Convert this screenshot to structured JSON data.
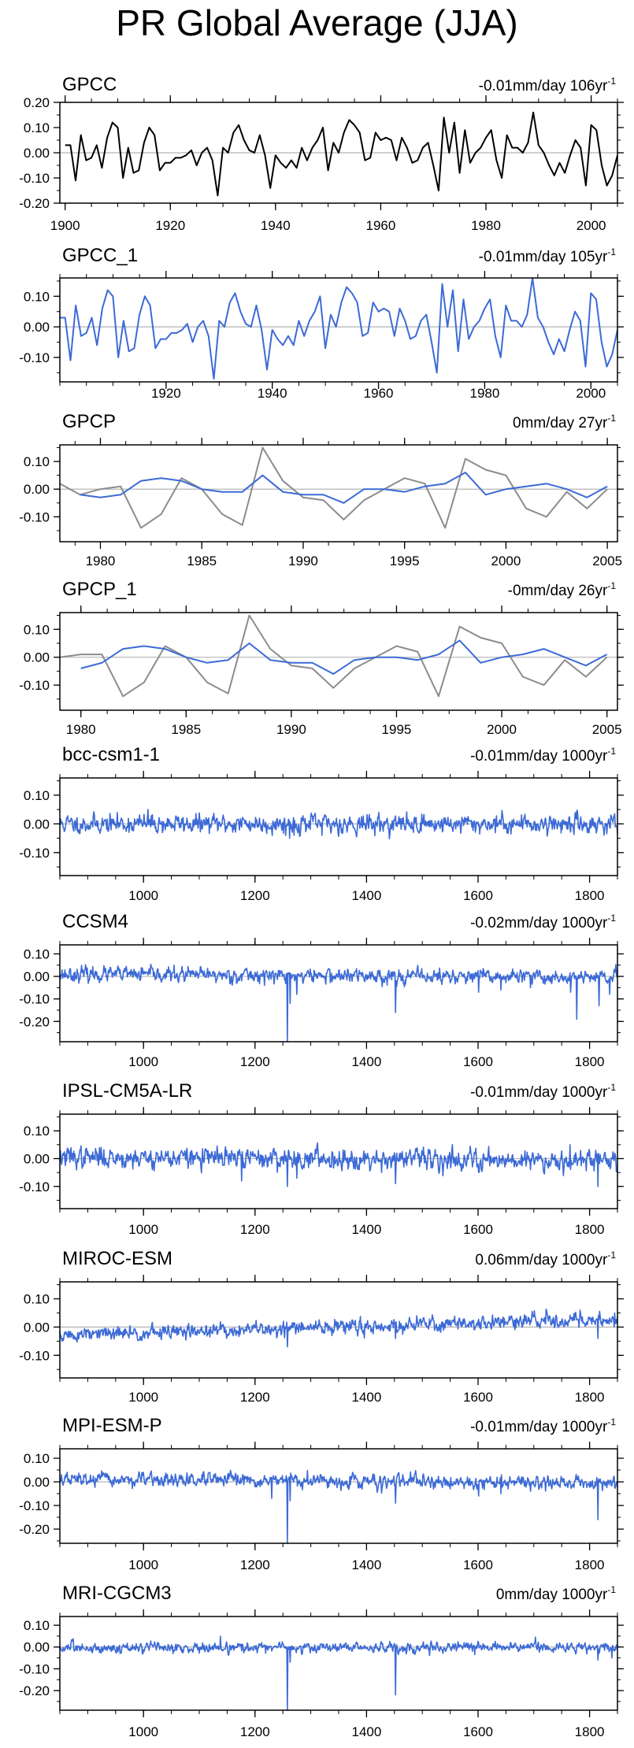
{
  "title": "PR Global Average (JJA)",
  "colors": {
    "model": "#3c6ad6",
    "obs_gpcc": "#000000",
    "obs_gpcp": "#8c8c8c",
    "zero_line": "#b4b4b4"
  },
  "chart_data": [
    {
      "type": "line",
      "label": "GPCC",
      "trend_text": "-0.01mm/day 106yr",
      "trend_sup": "-1",
      "xlim": [
        1899,
        2005
      ],
      "ylim": [
        -0.2,
        0.2
      ],
      "yticks": [
        -0.2,
        -0.1,
        0,
        0.1,
        0.2
      ],
      "yticklabels": [
        "-0.20",
        "-0.10",
        "0.00",
        "0.10",
        "0.20"
      ],
      "xticks": [
        1900,
        1920,
        1940,
        1960,
        1980,
        2000
      ],
      "xticklabels": [
        "1900",
        "1920",
        "1940",
        "1960",
        "1980",
        "2000"
      ],
      "series": [
        {
          "name": "GPCC",
          "color": "#000000",
          "x0": 1900,
          "values": [
            0.03,
            0.03,
            -0.11,
            0.07,
            -0.03,
            -0.02,
            0.03,
            -0.06,
            0.06,
            0.12,
            0.1,
            -0.1,
            0.02,
            -0.08,
            -0.07,
            0.04,
            0.1,
            0.07,
            -0.07,
            -0.04,
            -0.04,
            -0.02,
            -0.02,
            -0.01,
            0.01,
            -0.05,
            0.0,
            0.02,
            -0.03,
            -0.17,
            0.02,
            0.0,
            0.08,
            0.11,
            0.05,
            0.01,
            0.0,
            0.07,
            -0.01,
            -0.14,
            -0.01,
            -0.04,
            -0.06,
            -0.03,
            -0.06,
            0.02,
            -0.03,
            0.02,
            0.05,
            0.1,
            -0.07,
            0.04,
            0.0,
            0.08,
            0.13,
            0.11,
            0.08,
            -0.03,
            -0.02,
            0.08,
            0.05,
            0.06,
            0.05,
            -0.03,
            0.06,
            0.02,
            -0.04,
            -0.03,
            0.02,
            0.04,
            -0.05,
            -0.15,
            0.14,
            0.0,
            0.12,
            -0.08,
            0.09,
            -0.04,
            0.0,
            0.02,
            0.06,
            0.09,
            -0.03,
            -0.1,
            0.07,
            0.02,
            0.02,
            0.0,
            0.04,
            0.16,
            0.03,
            0.0,
            -0.05,
            -0.09,
            -0.04,
            -0.08,
            -0.01,
            0.05,
            0.02,
            -0.13,
            0.11,
            0.09,
            -0.05,
            -0.13,
            -0.09,
            -0.01
          ]
        }
      ]
    },
    {
      "type": "line",
      "label": "GPCC_1",
      "trend_text": "-0.01mm/day 105yr",
      "trend_sup": "-1",
      "xlim": [
        1900,
        2005
      ],
      "ylim": [
        -0.18,
        0.16
      ],
      "yticks": [
        -0.1,
        0,
        0.1
      ],
      "yticklabels": [
        "-0.10",
        "0.00",
        "0.10"
      ],
      "xticks": [
        1920,
        1940,
        1960,
        1980,
        2000
      ],
      "xticklabels": [
        "1920",
        "1940",
        "1960",
        "1980",
        "2000"
      ],
      "series": [
        {
          "name": "GPCC_1",
          "color": "#3c6ad6",
          "x0": 1900,
          "values": [
            0.03,
            0.03,
            -0.11,
            0.07,
            -0.03,
            -0.02,
            0.03,
            -0.06,
            0.06,
            0.12,
            0.1,
            -0.1,
            0.02,
            -0.08,
            -0.07,
            0.04,
            0.1,
            0.07,
            -0.07,
            -0.04,
            -0.04,
            -0.02,
            -0.02,
            -0.01,
            0.01,
            -0.05,
            0.0,
            0.02,
            -0.03,
            -0.17,
            0.02,
            0.0,
            0.08,
            0.11,
            0.05,
            0.01,
            0.0,
            0.07,
            -0.01,
            -0.14,
            -0.01,
            -0.04,
            -0.06,
            -0.03,
            -0.06,
            0.02,
            -0.03,
            0.02,
            0.05,
            0.1,
            -0.07,
            0.04,
            0.0,
            0.08,
            0.13,
            0.11,
            0.08,
            -0.03,
            -0.02,
            0.08,
            0.05,
            0.06,
            0.05,
            -0.03,
            0.06,
            0.02,
            -0.04,
            -0.03,
            0.02,
            0.04,
            -0.05,
            -0.15,
            0.14,
            0.0,
            0.12,
            -0.08,
            0.09,
            -0.04,
            0.0,
            0.02,
            0.06,
            0.09,
            -0.03,
            -0.1,
            0.07,
            0.02,
            0.02,
            0.0,
            0.04,
            0.16,
            0.03,
            0.0,
            -0.05,
            -0.09,
            -0.04,
            -0.08,
            -0.01,
            0.05,
            0.02,
            -0.13,
            0.11,
            0.09,
            -0.05,
            -0.13,
            -0.09,
            -0.01
          ]
        }
      ]
    },
    {
      "type": "line",
      "label": "GPCP",
      "trend_text": "0mm/day 27yr",
      "trend_sup": "-1",
      "xlim": [
        1978,
        2005.5
      ],
      "ylim": [
        -0.19,
        0.16
      ],
      "yticks": [
        -0.1,
        0,
        0.1
      ],
      "yticklabels": [
        "-0.10",
        "0.00",
        "0.10"
      ],
      "xticks": [
        1980,
        1985,
        1990,
        1995,
        2000,
        2005
      ],
      "xticklabels": [
        "1980",
        "1985",
        "1990",
        "1995",
        "2000",
        "2005"
      ],
      "series": [
        {
          "name": "GPCP (obs)",
          "color": "#8c8c8c",
          "x0": 1978,
          "values": [
            0.02,
            -0.02,
            0.0,
            0.01,
            -0.14,
            -0.09,
            0.04,
            0.0,
            -0.09,
            -0.13,
            0.15,
            0.03,
            -0.03,
            -0.04,
            -0.11,
            -0.04,
            0.0,
            0.04,
            0.02,
            -0.14,
            0.11,
            0.07,
            0.05,
            -0.07,
            -0.1,
            -0.01,
            -0.07,
            0.0
          ]
        },
        {
          "name": "GPCP (model)",
          "color": "#3c6ad6",
          "x0": 1979,
          "values": [
            -0.02,
            -0.03,
            -0.02,
            0.03,
            0.04,
            0.03,
            0.0,
            -0.01,
            -0.01,
            0.05,
            -0.01,
            -0.02,
            -0.02,
            -0.05,
            0.0,
            0.0,
            -0.01,
            0.01,
            0.02,
            0.06,
            -0.02,
            0.0,
            0.01,
            0.02,
            0.0,
            -0.03,
            0.01
          ]
        }
      ]
    },
    {
      "type": "line",
      "label": "GPCP_1",
      "trend_text": "-0mm/day 26yr",
      "trend_sup": "-1",
      "xlim": [
        1979,
        2005.5
      ],
      "ylim": [
        -0.19,
        0.16
      ],
      "yticks": [
        -0.1,
        0,
        0.1
      ],
      "yticklabels": [
        "-0.10",
        "0.00",
        "0.10"
      ],
      "xticks": [
        1980,
        1985,
        1990,
        1995,
        2000,
        2005
      ],
      "xticklabels": [
        "1980",
        "1985",
        "1990",
        "1995",
        "2000",
        "2005"
      ],
      "series": [
        {
          "name": "GPCP_1 (obs)",
          "color": "#8c8c8c",
          "x0": 1979,
          "values": [
            0.0,
            0.01,
            0.01,
            -0.14,
            -0.09,
            0.04,
            0.0,
            -0.09,
            -0.13,
            0.15,
            0.03,
            -0.03,
            -0.04,
            -0.11,
            -0.04,
            0.0,
            0.04,
            0.02,
            -0.14,
            0.11,
            0.07,
            0.05,
            -0.07,
            -0.1,
            -0.01,
            -0.07,
            0.0
          ]
        },
        {
          "name": "GPCP_1 (model)",
          "color": "#3c6ad6",
          "x0": 1980,
          "values": [
            -0.04,
            -0.02,
            0.03,
            0.04,
            0.03,
            0.0,
            -0.02,
            -0.01,
            0.05,
            -0.01,
            -0.02,
            -0.02,
            -0.06,
            -0.01,
            0.0,
            0.0,
            -0.01,
            0.01,
            0.06,
            -0.02,
            0.0,
            0.01,
            0.03,
            0.0,
            -0.03,
            0.01
          ]
        }
      ]
    },
    {
      "type": "line",
      "label": "bcc-csm1-1",
      "trend_text": "-0.01mm/day 1000yr",
      "trend_sup": "-1",
      "xlim": [
        850,
        1850
      ],
      "ylim": [
        -0.18,
        0.16
      ],
      "yticks": [
        -0.1,
        0,
        0.1
      ],
      "yticklabels": [
        "-0.10",
        "0.00",
        "0.10"
      ],
      "xticks": [
        1000,
        1200,
        1400,
        1600,
        1800
      ],
      "xticklabels": [
        "1000",
        "1200",
        "1400",
        "1600",
        "1800"
      ],
      "series": [
        {
          "name": "bcc-csm1-1",
          "color": "#3c6ad6",
          "x0": 850,
          "x1": 1850,
          "noise": 0.015,
          "drift_start": 0.0,
          "drift_end": 0.0,
          "seed": 11,
          "spikes": [
            [
              1008,
              0.05
            ],
            [
              1262,
              -0.05
            ],
            [
              1270,
              -0.04
            ],
            [
              1320,
              -0.04
            ],
            [
              1845,
              0.035
            ]
          ]
        }
      ]
    },
    {
      "type": "line",
      "label": "CCSM4",
      "trend_text": "-0.02mm/day 1000yr",
      "trend_sup": "-1",
      "xlim": [
        850,
        1850
      ],
      "ylim": [
        -0.29,
        0.14
      ],
      "yticks": [
        -0.2,
        -0.1,
        0,
        0.1
      ],
      "yticklabels": [
        "-0.20",
        "-0.10",
        "0.00",
        "0.10"
      ],
      "xticks": [
        1000,
        1200,
        1400,
        1600,
        1800
      ],
      "xticklabels": [
        "1000",
        "1200",
        "1400",
        "1600",
        "1800"
      ],
      "series": [
        {
          "name": "CCSM4",
          "color": "#3c6ad6",
          "x0": 850,
          "x1": 1850,
          "noise": 0.015,
          "drift_start": 0.01,
          "drift_end": -0.005,
          "seed": 23,
          "spikes": [
            [
              1258,
              -0.29
            ],
            [
              1263,
              -0.12
            ],
            [
              1275,
              -0.08
            ],
            [
              1452,
              -0.16
            ],
            [
              1601,
              -0.07
            ],
            [
              1641,
              -0.06
            ],
            [
              1694,
              -0.05
            ],
            [
              1766,
              -0.07
            ],
            [
              1777,
              -0.19
            ],
            [
              1817,
              -0.13
            ],
            [
              1836,
              -0.08
            ]
          ]
        }
      ]
    },
    {
      "type": "line",
      "label": "IPSL-CM5A-LR",
      "trend_text": "-0.01mm/day 1000yr",
      "trend_sup": "-1",
      "xlim": [
        850,
        1850
      ],
      "ylim": [
        -0.18,
        0.16
      ],
      "yticks": [
        -0.1,
        0,
        0.1
      ],
      "yticklabels": [
        "-0.10",
        "0.00",
        "0.10"
      ],
      "xticks": [
        1000,
        1200,
        1400,
        1600,
        1800
      ],
      "xticklabels": [
        "1000",
        "1200",
        "1400",
        "1600",
        "1800"
      ],
      "series": [
        {
          "name": "IPSL-CM5A-LR",
          "color": "#3c6ad6",
          "x0": 850,
          "x1": 1850,
          "noise": 0.017,
          "drift_start": 0.005,
          "drift_end": -0.005,
          "seed": 37,
          "spikes": [
            [
              1176,
              -0.08
            ],
            [
              1258,
              -0.1
            ],
            [
              1275,
              -0.07
            ],
            [
              1452,
              -0.09
            ],
            [
              1601,
              -0.05
            ],
            [
              1694,
              -0.04
            ],
            [
              1765,
              0.05
            ],
            [
              1815,
              -0.1
            ]
          ]
        }
      ]
    },
    {
      "type": "line",
      "label": "MIROC-ESM",
      "trend_text": "0.06mm/day 1000yr",
      "trend_sup": "-1",
      "xlim": [
        850,
        1850
      ],
      "ylim": [
        -0.18,
        0.16
      ],
      "yticks": [
        -0.1,
        0,
        0.1
      ],
      "yticklabels": [
        "-0.10",
        "0.00",
        "0.10"
      ],
      "xticks": [
        1000,
        1200,
        1400,
        1600,
        1800
      ],
      "xticklabels": [
        "1000",
        "1200",
        "1400",
        "1600",
        "1800"
      ],
      "series": [
        {
          "name": "MIROC-ESM",
          "color": "#3c6ad6",
          "x0": 850,
          "x1": 1850,
          "noise": 0.012,
          "drift_start": -0.03,
          "drift_end": 0.03,
          "seed": 51,
          "spikes": [
            [
              1258,
              -0.07
            ],
            [
              1452,
              -0.04
            ],
            [
              1815,
              -0.04
            ],
            [
              1845,
              0.05
            ]
          ]
        }
      ]
    },
    {
      "type": "line",
      "label": "MPI-ESM-P",
      "trend_text": "-0.01mm/day 1000yr",
      "trend_sup": "-1",
      "xlim": [
        850,
        1850
      ],
      "ylim": [
        -0.26,
        0.14
      ],
      "yticks": [
        -0.2,
        -0.1,
        0,
        0.1
      ],
      "yticklabels": [
        "-0.20",
        "-0.10",
        "0.00",
        "0.10"
      ],
      "xticks": [
        1000,
        1200,
        1400,
        1600,
        1800
      ],
      "xticklabels": [
        "1000",
        "1200",
        "1400",
        "1600",
        "1800"
      ],
      "series": [
        {
          "name": "MPI-ESM-P",
          "color": "#3c6ad6",
          "x0": 850,
          "x1": 1850,
          "noise": 0.013,
          "drift_start": 0.01,
          "drift_end": -0.005,
          "seed": 67,
          "spikes": [
            [
              1230,
              -0.07
            ],
            [
              1258,
              -0.26
            ],
            [
              1263,
              -0.08
            ],
            [
              1452,
              -0.09
            ],
            [
              1601,
              -0.06
            ],
            [
              1641,
              -0.05
            ],
            [
              1694,
              -0.04
            ],
            [
              1815,
              -0.16
            ]
          ]
        }
      ]
    },
    {
      "type": "line",
      "label": "MRI-CGCM3",
      "trend_text": "0mm/day 1000yr",
      "trend_sup": "-1",
      "xlim": [
        850,
        1850
      ],
      "ylim": [
        -0.29,
        0.14
      ],
      "yticks": [
        -0.2,
        -0.1,
        0,
        0.1
      ],
      "yticklabels": [
        "-0.20",
        "-0.10",
        "0.00",
        "0.10"
      ],
      "xticks": [
        1000,
        1200,
        1400,
        1600,
        1800
      ],
      "xticklabels": [
        "1000",
        "1200",
        "1400",
        "1600",
        "1800"
      ],
      "series": [
        {
          "name": "MRI-CGCM3",
          "color": "#3c6ad6",
          "x0": 850,
          "x1": 1850,
          "noise": 0.011,
          "drift_start": -0.005,
          "drift_end": 0.0,
          "seed": 83,
          "spikes": [
            [
              1138,
              0.05
            ],
            [
              1258,
              -0.29
            ],
            [
              1263,
              -0.07
            ],
            [
              1452,
              -0.22
            ],
            [
              1815,
              -0.06
            ],
            [
              1840,
              -0.05
            ]
          ]
        }
      ]
    }
  ]
}
